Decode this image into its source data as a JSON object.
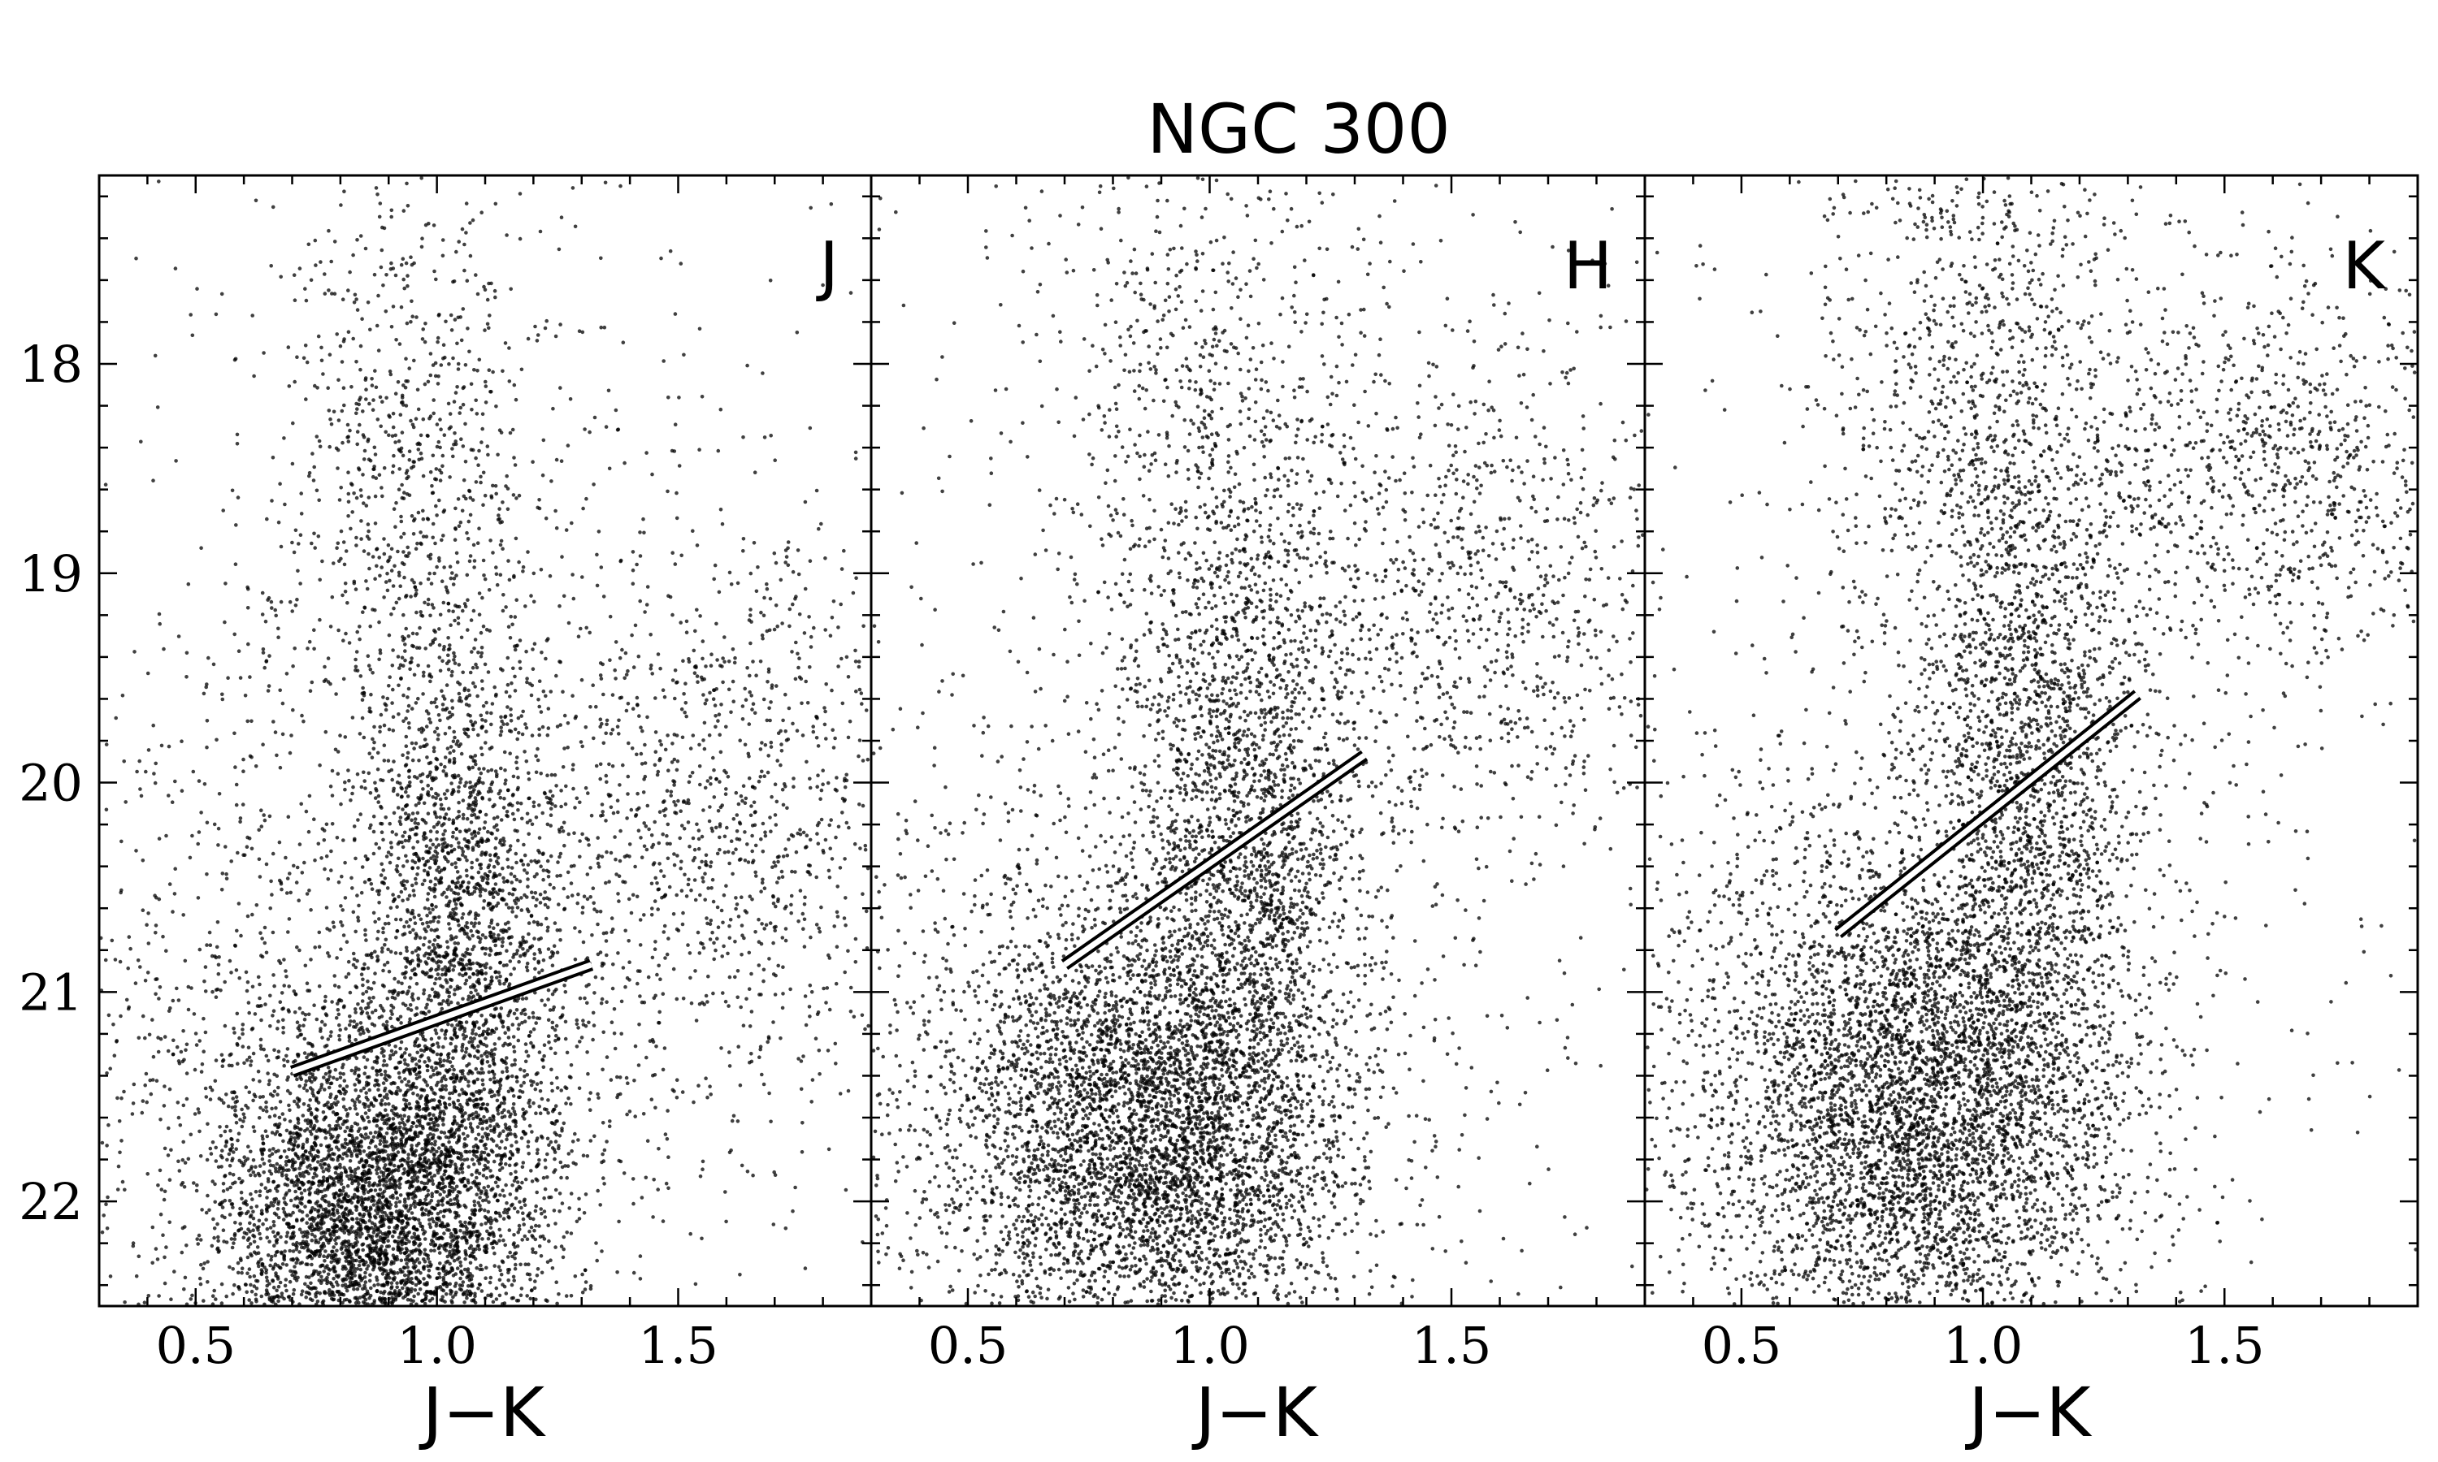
{
  "title": "NGC 300",
  "chart_data": [
    {
      "type": "scatter",
      "panel_label": "J",
      "xlabel": "J−K",
      "ylabel": "",
      "xlim": [
        0.3,
        1.9
      ],
      "ylim": [
        22.5,
        17.1
      ],
      "y_inverted": true,
      "x_ticks": [
        0.5,
        1.0,
        1.5
      ],
      "x_tick_labels": [
        "0.5",
        "1.0",
        "1.5"
      ],
      "y_ticks": [
        18,
        19,
        20,
        21,
        22
      ],
      "y_tick_labels": [
        "18",
        "19",
        "20",
        "21",
        "22"
      ],
      "cutoff_line": {
        "x": [
          0.7,
          1.32
        ],
        "y": [
          21.38,
          20.87
        ]
      },
      "density": [
        {
          "cx": 0.88,
          "cy": 22.05,
          "sx": 0.17,
          "sy": 0.45,
          "w": 0.42
        },
        {
          "cx": 1.05,
          "cy": 20.75,
          "sx": 0.11,
          "sy": 0.75,
          "w": 0.2
        },
        {
          "cx": 0.95,
          "cy": 18.6,
          "sx": 0.14,
          "sy": 0.8,
          "w": 0.08
        },
        {
          "cx": 1.6,
          "cy": 20.2,
          "sx": 0.22,
          "sy": 0.7,
          "w": 0.1
        },
        {
          "cx": 0.8,
          "cy": 21.2,
          "sx": 0.35,
          "sy": 0.9,
          "w": 0.12
        },
        {
          "cx": 1.1,
          "cy": 19.8,
          "sx": 0.55,
          "sy": 2.0,
          "w": 0.08
        }
      ]
    },
    {
      "type": "scatter",
      "panel_label": "H",
      "xlabel": "J−K",
      "ylabel": "",
      "xlim": [
        0.3,
        1.9
      ],
      "ylim": [
        22.5,
        17.1
      ],
      "y_inverted": true,
      "x_ticks": [
        0.5,
        1.0,
        1.5
      ],
      "x_tick_labels": [
        "0.5",
        "1.0",
        "1.5"
      ],
      "y_ticks": [
        18,
        19,
        20,
        21,
        22
      ],
      "y_tick_labels": [
        "18",
        "19",
        "20",
        "21",
        "22"
      ],
      "cutoff_line": {
        "x": [
          0.7,
          1.32
        ],
        "y": [
          20.87,
          19.87
        ]
      },
      "density": [
        {
          "cx": 0.88,
          "cy": 21.7,
          "sx": 0.2,
          "sy": 0.55,
          "w": 0.42
        },
        {
          "cx": 1.08,
          "cy": 20.2,
          "sx": 0.11,
          "sy": 0.8,
          "w": 0.2
        },
        {
          "cx": 0.98,
          "cy": 18.4,
          "sx": 0.16,
          "sy": 0.9,
          "w": 0.08
        },
        {
          "cx": 1.55,
          "cy": 19.1,
          "sx": 0.2,
          "sy": 0.6,
          "w": 0.09
        },
        {
          "cx": 0.75,
          "cy": 21.5,
          "sx": 0.35,
          "sy": 0.9,
          "w": 0.13
        },
        {
          "cx": 1.1,
          "cy": 19.6,
          "sx": 0.55,
          "sy": 2.0,
          "w": 0.08
        }
      ]
    },
    {
      "type": "scatter",
      "panel_label": "K",
      "xlabel": "J−K",
      "ylabel": "",
      "xlim": [
        0.3,
        1.9
      ],
      "ylim": [
        22.5,
        17.1
      ],
      "y_inverted": true,
      "x_ticks": [
        0.5,
        1.0,
        1.5
      ],
      "x_tick_labels": [
        "0.5",
        "1.0",
        "1.5"
      ],
      "y_ticks": [
        18,
        19,
        20,
        21,
        22
      ],
      "y_tick_labels": [
        "18",
        "19",
        "20",
        "21",
        "22"
      ],
      "cutoff_line": {
        "x": [
          0.7,
          1.32
        ],
        "y": [
          20.72,
          19.58
        ]
      },
      "density": [
        {
          "cx": 0.88,
          "cy": 21.55,
          "sx": 0.2,
          "sy": 0.6,
          "w": 0.42
        },
        {
          "cx": 1.1,
          "cy": 19.8,
          "sx": 0.12,
          "sy": 0.9,
          "w": 0.2
        },
        {
          "cx": 0.98,
          "cy": 18.0,
          "sx": 0.16,
          "sy": 0.8,
          "w": 0.08
        },
        {
          "cx": 1.62,
          "cy": 18.5,
          "sx": 0.2,
          "sy": 0.5,
          "w": 0.09
        },
        {
          "cx": 0.75,
          "cy": 21.4,
          "sx": 0.35,
          "sy": 0.9,
          "w": 0.13
        },
        {
          "cx": 1.1,
          "cy": 19.4,
          "sx": 0.55,
          "sy": 2.0,
          "w": 0.08
        }
      ]
    }
  ]
}
